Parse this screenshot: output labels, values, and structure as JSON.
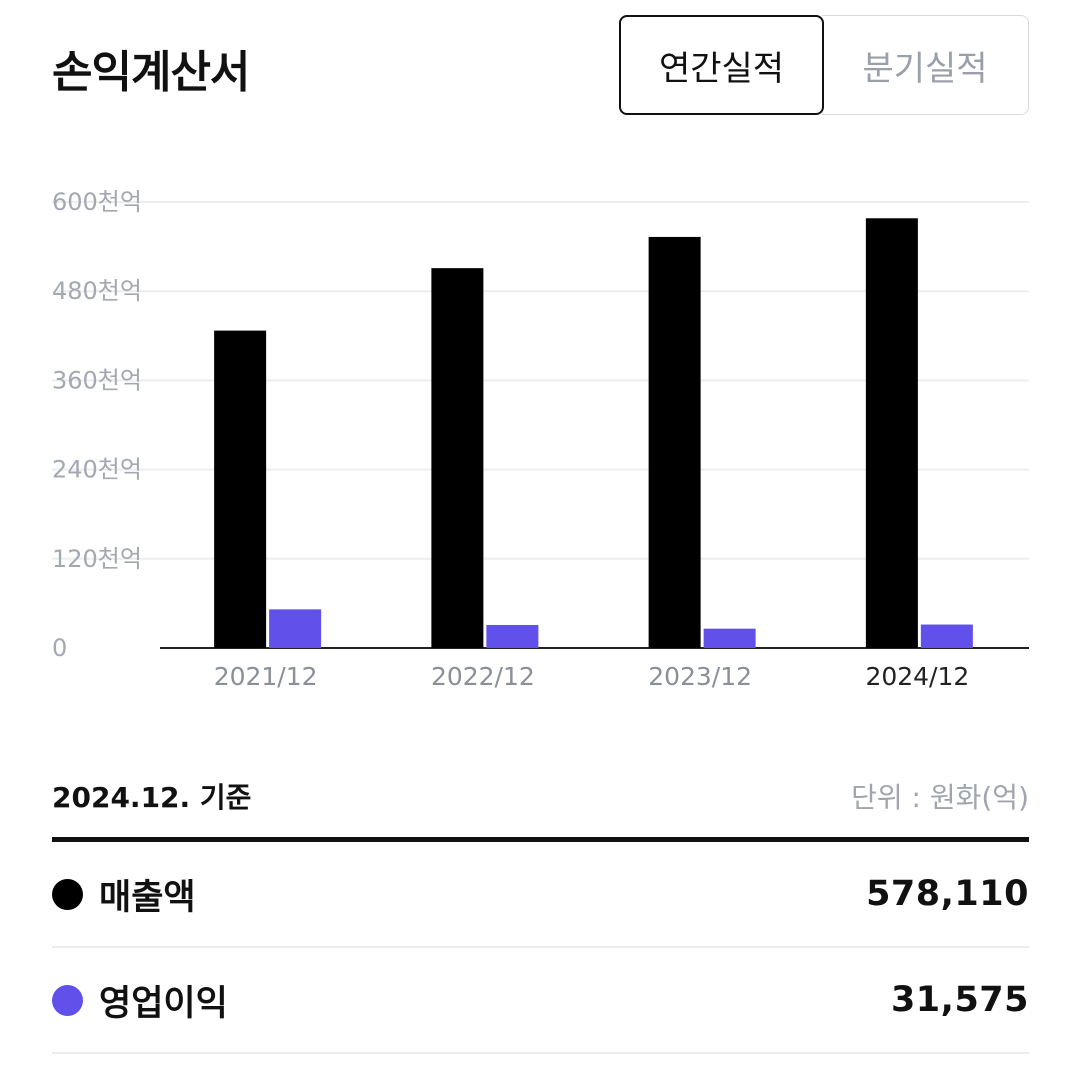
{
  "header": {
    "title": "손익계산서",
    "tabs": [
      {
        "label": "연간실적",
        "active": true
      },
      {
        "label": "분기실적",
        "active": false
      }
    ]
  },
  "chart_data": {
    "type": "bar",
    "categories": [
      "2021/12",
      "2022/12",
      "2023/12",
      "2024/12"
    ],
    "series": [
      {
        "name": "매출액",
        "color": "#000000",
        "values": [
          427000,
          511000,
          553000,
          578110
        ]
      },
      {
        "name": "영업이익",
        "color": "#6151ea",
        "values": [
          52000,
          31000,
          26000,
          31575
        ]
      }
    ],
    "ylim": [
      0,
      600000
    ],
    "yticks": [
      0,
      120000,
      240000,
      360000,
      480000,
      600000
    ],
    "ytick_labels": [
      "0",
      "120천억",
      "240천억",
      "360천억",
      "480천억",
      "600천억"
    ],
    "highlight_category": "2024/12",
    "grid": true
  },
  "summary": {
    "basis": "2024.12. 기준",
    "unit": "단위 : 원화(억)",
    "rows": [
      {
        "label": "매출액",
        "value": "578,110",
        "color": "#000000"
      },
      {
        "label": "영업이익",
        "value": "31,575",
        "color": "#6151ea"
      }
    ]
  }
}
